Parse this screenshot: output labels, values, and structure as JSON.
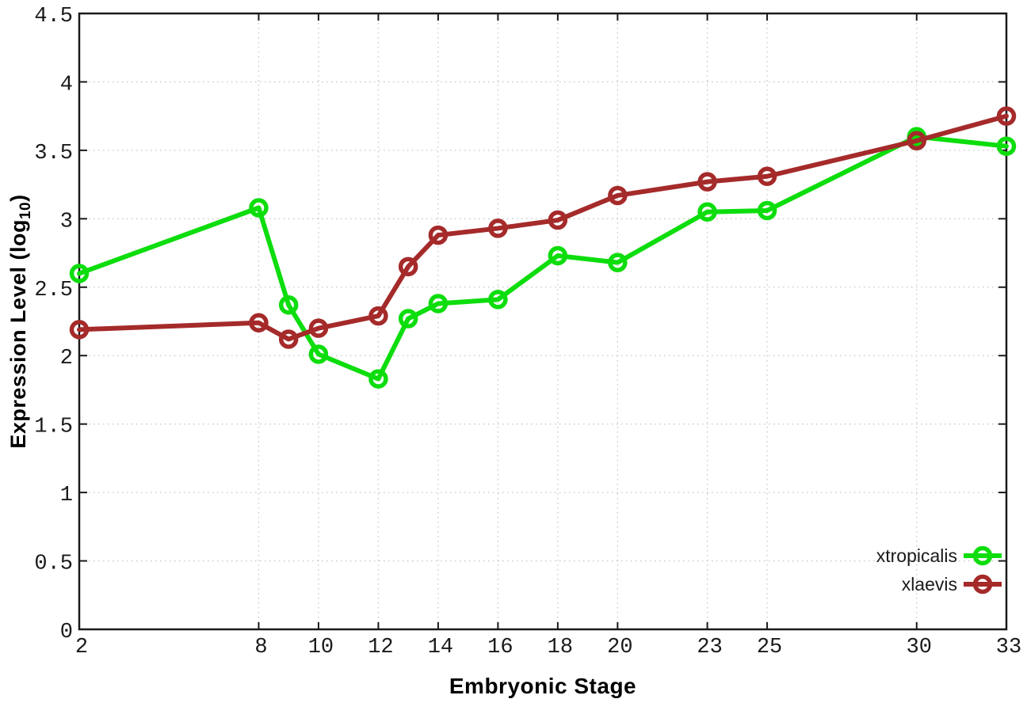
{
  "figure": {
    "background": "#ffffff",
    "axis_color": "#1a1a1a",
    "grid_color": "#c6c6c6",
    "tick_label_color": "#1a1a1a"
  },
  "chart_data": {
    "type": "line",
    "title": "",
    "xlabel": "Embryonic Stage",
    "ylabel": {
      "prefix": "Expression Level (log",
      "sub": "10",
      "suffix": ")"
    },
    "xlim": [
      2,
      33
    ],
    "ylim": [
      0,
      4.5
    ],
    "xticks": [
      2,
      8,
      10,
      12,
      14,
      16,
      18,
      20,
      23,
      25,
      30,
      33
    ],
    "yticks": [
      0,
      0.5,
      1,
      1.5,
      2,
      2.5,
      3,
      3.5,
      4,
      4.5
    ],
    "grid": true,
    "legend": {
      "position": "bottom-right"
    },
    "x": [
      2,
      8,
      9,
      10,
      12,
      13,
      14,
      16,
      18,
      20,
      23,
      25,
      30,
      33
    ],
    "series": [
      {
        "name": "xtropicalis",
        "color": "#0ddd0d",
        "marker": "open-circle",
        "values": [
          2.6,
          3.08,
          2.37,
          2.01,
          1.83,
          2.27,
          2.38,
          2.41,
          2.73,
          2.68,
          3.05,
          3.06,
          3.6,
          3.53
        ]
      },
      {
        "name": "xlaevis",
        "color": "#a52a2a",
        "marker": "open-circle",
        "values": [
          2.19,
          2.24,
          2.12,
          2.2,
          2.29,
          2.65,
          2.88,
          2.93,
          2.99,
          3.17,
          3.27,
          3.31,
          3.57,
          3.75
        ]
      }
    ]
  }
}
